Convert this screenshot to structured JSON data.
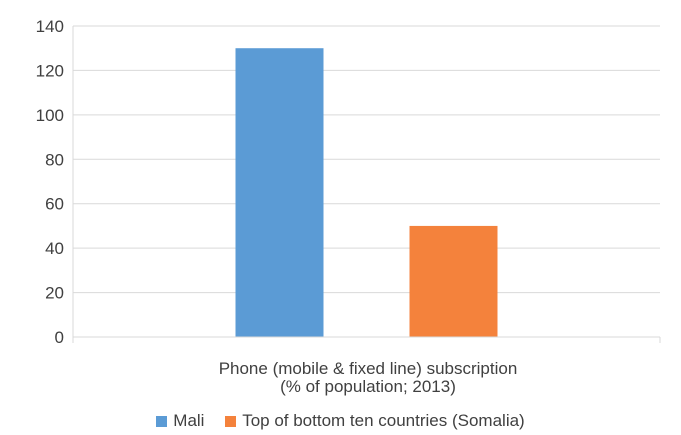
{
  "chart_data": {
    "type": "bar",
    "categories": [
      "Phone (mobile & fixed line) subscription\n(% of population; 2013)"
    ],
    "category_lines": [
      "Phone (mobile & fixed line) subscription",
      "(% of population; 2013)"
    ],
    "series": [
      {
        "name": "Mali",
        "values": [
          130
        ],
        "color": "#5B9BD5"
      },
      {
        "name": "Top of bottom ten countries (Somalia)",
        "values": [
          50
        ],
        "color": "#F4823C"
      }
    ],
    "ylim": [
      0,
      140
    ],
    "yticks": [
      0,
      20,
      40,
      60,
      80,
      100,
      120,
      140
    ],
    "grid": true,
    "legend_position": "bottom"
  }
}
